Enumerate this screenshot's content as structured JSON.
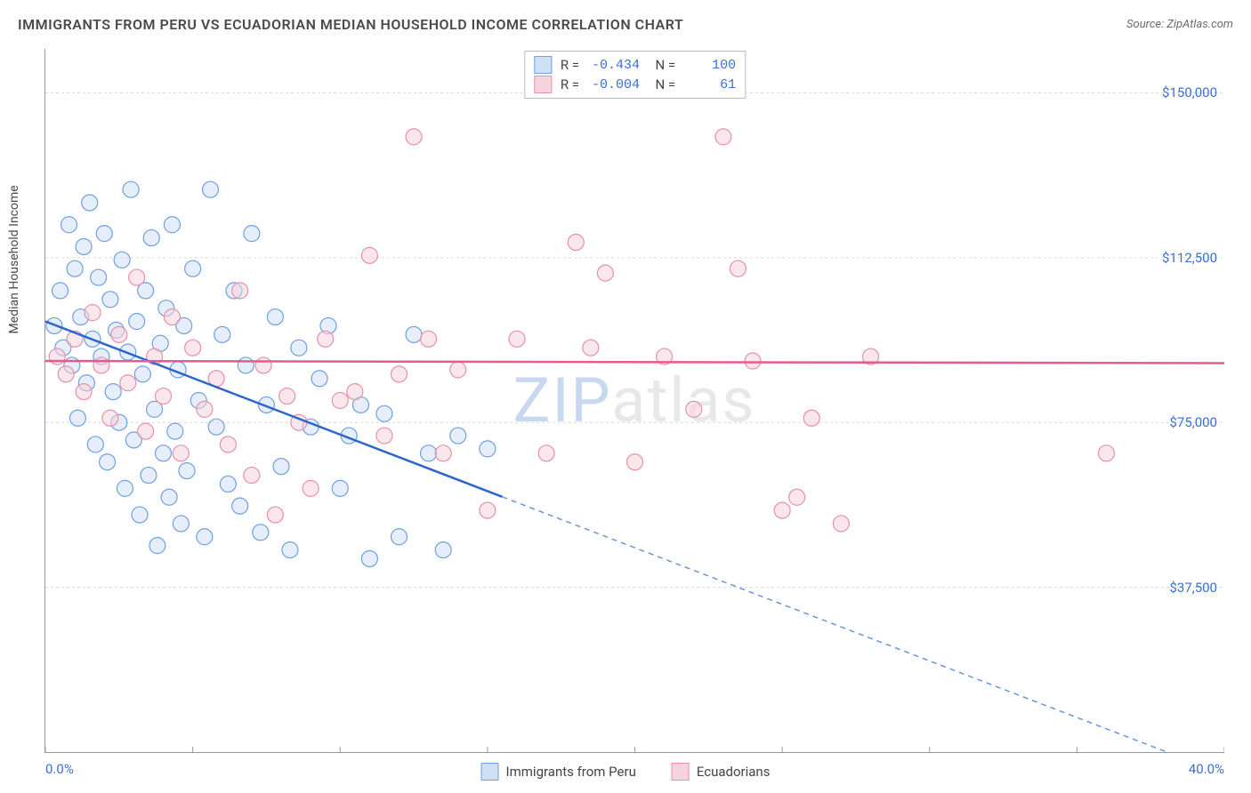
{
  "title": "IMMIGRANTS FROM PERU VS ECUADORIAN MEDIAN HOUSEHOLD INCOME CORRELATION CHART",
  "source": "Source: ZipAtlas.com",
  "watermark": "ZIPatlas",
  "y_axis_label": "Median Household Income",
  "chart": {
    "type": "scatter",
    "background_color": "#ffffff",
    "grid_color": "#d9d9d9",
    "axis_color": "#999999",
    "label_color": "#3b6fd6",
    "title_color": "#4a4a4a",
    "title_fontsize": 16,
    "label_fontsize": 15,
    "marker_radius": 9,
    "marker_stroke_width": 1.2,
    "xlim": [
      0,
      40
    ],
    "ylim": [
      0,
      160000
    ],
    "x_ticks": [
      0,
      5,
      10,
      15,
      20,
      25,
      30,
      35,
      40
    ],
    "x_tick_labels": {
      "0": "0.0%",
      "40": "40.0%"
    },
    "y_ticks": [
      37500,
      75000,
      112500,
      150000
    ],
    "y_tick_labels": {
      "37500": "$37,500",
      "75000": "$75,000",
      "112500": "$112,500",
      "150000": "$150,000"
    },
    "series": [
      {
        "name": "Immigrants from Peru",
        "fill": "#cfe0f5",
        "stroke": "#6fa0e0",
        "fill_opacity": 0.55,
        "R": "-0.434",
        "N": "100",
        "trend": {
          "x1": 0,
          "y1": 98000,
          "x2": 40,
          "y2": -5000,
          "solid_until_x": 15.5,
          "color": "#2d66c9",
          "width": 2.5
        },
        "points": [
          [
            0.3,
            97000
          ],
          [
            0.5,
            105000
          ],
          [
            0.6,
            92000
          ],
          [
            0.8,
            120000
          ],
          [
            0.9,
            88000
          ],
          [
            1.0,
            110000
          ],
          [
            1.1,
            76000
          ],
          [
            1.2,
            99000
          ],
          [
            1.3,
            115000
          ],
          [
            1.4,
            84000
          ],
          [
            1.5,
            125000
          ],
          [
            1.6,
            94000
          ],
          [
            1.7,
            70000
          ],
          [
            1.8,
            108000
          ],
          [
            1.9,
            90000
          ],
          [
            2.0,
            118000
          ],
          [
            2.1,
            66000
          ],
          [
            2.2,
            103000
          ],
          [
            2.3,
            82000
          ],
          [
            2.4,
            96000
          ],
          [
            2.5,
            75000
          ],
          [
            2.6,
            112000
          ],
          [
            2.7,
            60000
          ],
          [
            2.8,
            91000
          ],
          [
            2.9,
            128000
          ],
          [
            3.0,
            71000
          ],
          [
            3.1,
            98000
          ],
          [
            3.2,
            54000
          ],
          [
            3.3,
            86000
          ],
          [
            3.4,
            105000
          ],
          [
            3.5,
            63000
          ],
          [
            3.6,
            117000
          ],
          [
            3.7,
            78000
          ],
          [
            3.8,
            47000
          ],
          [
            3.9,
            93000
          ],
          [
            4.0,
            68000
          ],
          [
            4.1,
            101000
          ],
          [
            4.2,
            58000
          ],
          [
            4.3,
            120000
          ],
          [
            4.4,
            73000
          ],
          [
            4.5,
            87000
          ],
          [
            4.6,
            52000
          ],
          [
            4.7,
            97000
          ],
          [
            4.8,
            64000
          ],
          [
            5.0,
            110000
          ],
          [
            5.2,
            80000
          ],
          [
            5.4,
            49000
          ],
          [
            5.6,
            128000
          ],
          [
            5.8,
            74000
          ],
          [
            6.0,
            95000
          ],
          [
            6.2,
            61000
          ],
          [
            6.4,
            105000
          ],
          [
            6.6,
            56000
          ],
          [
            6.8,
            88000
          ],
          [
            7.0,
            118000
          ],
          [
            7.3,
            50000
          ],
          [
            7.5,
            79000
          ],
          [
            7.8,
            99000
          ],
          [
            8.0,
            65000
          ],
          [
            8.3,
            46000
          ],
          [
            8.6,
            92000
          ],
          [
            9.0,
            74000
          ],
          [
            9.3,
            85000
          ],
          [
            9.6,
            97000
          ],
          [
            10.0,
            60000
          ],
          [
            10.3,
            72000
          ],
          [
            10.7,
            79000
          ],
          [
            11.0,
            44000
          ],
          [
            11.5,
            77000
          ],
          [
            12.0,
            49000
          ],
          [
            12.5,
            95000
          ],
          [
            13.0,
            68000
          ],
          [
            13.5,
            46000
          ],
          [
            14.0,
            72000
          ],
          [
            15.0,
            69000
          ]
        ]
      },
      {
        "name": "Ecuadorians",
        "fill": "#f6d4dd",
        "stroke": "#e790ab",
        "fill_opacity": 0.55,
        "R": "-0.004",
        "N": "61",
        "trend": {
          "x1": 0,
          "y1": 89000,
          "x2": 40,
          "y2": 88500,
          "solid_until_x": 40,
          "color": "#e65a92",
          "width": 2.5
        },
        "points": [
          [
            0.4,
            90000
          ],
          [
            0.7,
            86000
          ],
          [
            1.0,
            94000
          ],
          [
            1.3,
            82000
          ],
          [
            1.6,
            100000
          ],
          [
            1.9,
            88000
          ],
          [
            2.2,
            76000
          ],
          [
            2.5,
            95000
          ],
          [
            2.8,
            84000
          ],
          [
            3.1,
            108000
          ],
          [
            3.4,
            73000
          ],
          [
            3.7,
            90000
          ],
          [
            4.0,
            81000
          ],
          [
            4.3,
            99000
          ],
          [
            4.6,
            68000
          ],
          [
            5.0,
            92000
          ],
          [
            5.4,
            78000
          ],
          [
            5.8,
            85000
          ],
          [
            6.2,
            70000
          ],
          [
            6.6,
            105000
          ],
          [
            7.0,
            63000
          ],
          [
            7.4,
            88000
          ],
          [
            7.8,
            54000
          ],
          [
            8.2,
            81000
          ],
          [
            8.6,
            75000
          ],
          [
            9.0,
            60000
          ],
          [
            9.5,
            94000
          ],
          [
            10.0,
            80000
          ],
          [
            10.5,
            82000
          ],
          [
            11.0,
            113000
          ],
          [
            11.5,
            72000
          ],
          [
            12.0,
            86000
          ],
          [
            12.5,
            140000
          ],
          [
            13.0,
            94000
          ],
          [
            13.5,
            68000
          ],
          [
            14.0,
            87000
          ],
          [
            15.0,
            55000
          ],
          [
            16.0,
            94000
          ],
          [
            17.0,
            68000
          ],
          [
            18.0,
            116000
          ],
          [
            18.5,
            92000
          ],
          [
            19.0,
            109000
          ],
          [
            20.0,
            66000
          ],
          [
            21.0,
            90000
          ],
          [
            22.0,
            78000
          ],
          [
            23.0,
            140000
          ],
          [
            23.5,
            110000
          ],
          [
            24.0,
            89000
          ],
          [
            25.0,
            55000
          ],
          [
            25.5,
            58000
          ],
          [
            26.0,
            76000
          ],
          [
            27.0,
            52000
          ],
          [
            28.0,
            90000
          ],
          [
            36.0,
            68000
          ]
        ]
      }
    ]
  },
  "legend_bottom": [
    {
      "label": "Immigrants from Peru",
      "fill": "#cfe0f5",
      "stroke": "#6fa0e0"
    },
    {
      "label": "Ecuadorians",
      "fill": "#f6d4dd",
      "stroke": "#e790ab"
    }
  ]
}
